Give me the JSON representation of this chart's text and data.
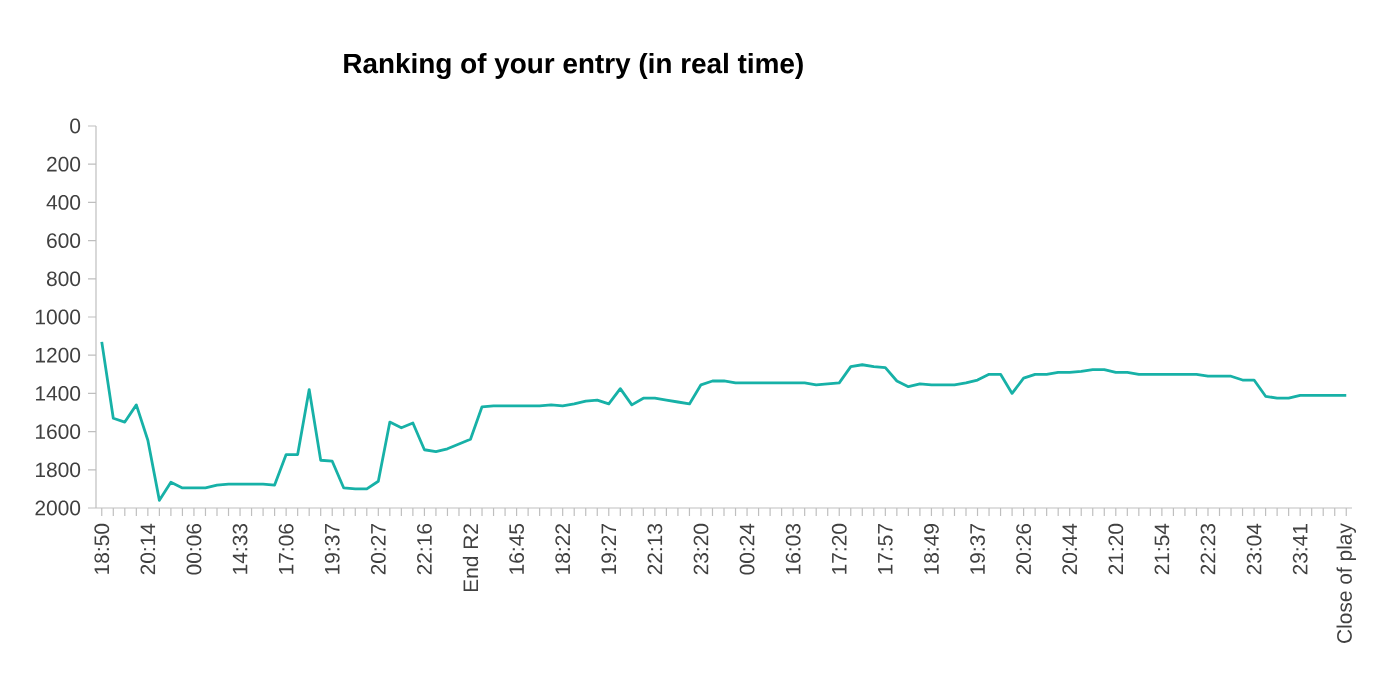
{
  "chart_data": {
    "type": "line",
    "title": "Ranking of your entry (in real time)",
    "color": "#17b1a7",
    "ylim": [
      2000,
      0
    ],
    "yticks": [
      0,
      200,
      400,
      600,
      800,
      1000,
      1200,
      1400,
      1600,
      1800,
      2000
    ],
    "grid": false,
    "marker": "none",
    "line_style": "solid",
    "categories": [
      "18:50",
      null,
      null,
      null,
      "20:14",
      null,
      null,
      null,
      "00:06",
      null,
      null,
      null,
      "14:33",
      null,
      null,
      null,
      "17:06",
      null,
      null,
      null,
      "19:37",
      null,
      null,
      null,
      "20:27",
      null,
      null,
      null,
      "22:16",
      null,
      null,
      null,
      "End R2",
      null,
      null,
      null,
      "16:45",
      null,
      null,
      null,
      "18:22",
      null,
      null,
      null,
      "19:27",
      null,
      null,
      null,
      "22:13",
      null,
      null,
      null,
      "23:20",
      null,
      null,
      null,
      "00:24",
      null,
      null,
      null,
      "16:03",
      null,
      null,
      null,
      "17:20",
      null,
      null,
      null,
      "17:57",
      null,
      null,
      null,
      "18:49",
      null,
      null,
      null,
      "19:37",
      null,
      null,
      null,
      "20:26",
      null,
      null,
      null,
      "20:44",
      null,
      null,
      null,
      "21:20",
      null,
      null,
      null,
      "21:54",
      null,
      null,
      null,
      "22:23",
      null,
      null,
      null,
      "23:04",
      null,
      null,
      null,
      "23:41",
      null,
      null,
      null,
      "Close of play"
    ],
    "values": [
      1130,
      1530,
      1550,
      1460,
      1645,
      1960,
      1865,
      1895,
      1895,
      1895,
      1880,
      1875,
      1875,
      1875,
      1875,
      1880,
      1720,
      1720,
      1380,
      1750,
      1755,
      1895,
      1900,
      1900,
      1860,
      1550,
      1580,
      1555,
      1695,
      1705,
      1690,
      1665,
      1640,
      1470,
      1465,
      1465,
      1465,
      1465,
      1465,
      1460,
      1465,
      1455,
      1440,
      1435,
      1455,
      1375,
      1460,
      1425,
      1425,
      1435,
      1445,
      1455,
      1355,
      1335,
      1335,
      1345,
      1345,
      1345,
      1345,
      1345,
      1345,
      1345,
      1355,
      1350,
      1345,
      1260,
      1250,
      1260,
      1265,
      1335,
      1365,
      1350,
      1355,
      1355,
      1355,
      1345,
      1330,
      1300,
      1300,
      1400,
      1320,
      1300,
      1300,
      1290,
      1290,
      1285,
      1275,
      1275,
      1290,
      1290,
      1300,
      1300,
      1300,
      1300,
      1300,
      1300,
      1310,
      1310,
      1310,
      1330,
      1330,
      1415,
      1425,
      1425,
      1410,
      1410,
      1410,
      1410,
      1410
    ]
  }
}
